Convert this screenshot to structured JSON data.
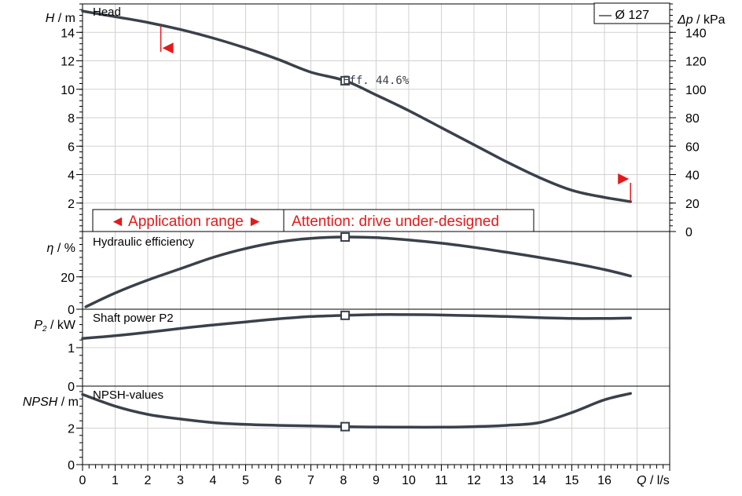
{
  "chart_data": {
    "type": "line",
    "colors": {
      "curve": "#3a414b",
      "annotation": "#e41a1a",
      "frame": "#000000"
    },
    "legend": {
      "label": "— Ø 127",
      "placement": "top-right"
    },
    "x_axis": {
      "label_name": "Q",
      "label_unit": " / l/s",
      "range": [
        0,
        18
      ],
      "ticks": [
        "0",
        "1",
        "2",
        "3",
        "4",
        "5",
        "6",
        "7",
        "8",
        "9",
        "10",
        "11",
        "12",
        "13",
        "14",
        "15",
        "16"
      ]
    },
    "operating_point": {
      "x": 8.05,
      "efficiency_label": "Eff. 44.6%"
    },
    "head": {
      "title": "Head",
      "ylabel_name": "H",
      "ylabel_unit": " / m",
      "ylim": [
        0,
        16
      ],
      "ticks": [
        "2",
        "4",
        "6",
        "8",
        "10",
        "12",
        "14"
      ],
      "right_label_name": "Δp",
      "right_label_unit": " / kPa",
      "right_lim": [
        0,
        160
      ],
      "right_ticks": [
        "0",
        "20",
        "40",
        "60",
        "80",
        "100",
        "120",
        "140"
      ],
      "points": [
        [
          0,
          15.5
        ],
        [
          1,
          15.1
        ],
        [
          2,
          14.7
        ],
        [
          3,
          14.2
        ],
        [
          4,
          13.6
        ],
        [
          5,
          12.9
        ],
        [
          6,
          12.1
        ],
        [
          7,
          11.2
        ],
        [
          8.05,
          10.6
        ],
        [
          9,
          9.6
        ],
        [
          10,
          8.5
        ],
        [
          11,
          7.3
        ],
        [
          12,
          6.1
        ],
        [
          13,
          4.9
        ],
        [
          14,
          3.8
        ],
        [
          15,
          2.9
        ],
        [
          16,
          2.4
        ],
        [
          16.8,
          2.1
        ]
      ]
    },
    "annotations": {
      "application_range": "◄ Application range ►",
      "attention": "Attention: drive under-designed",
      "range_start_x": 0.55,
      "range_end_x": 6.25,
      "left_limit_x": 2.4,
      "right_limit_x": 16.8
    },
    "efficiency": {
      "title": "Hydraulic efficiency",
      "ylabel_name": "η",
      "ylabel_unit": " / %",
      "ylim": [
        0,
        48
      ],
      "ticks": [
        "0",
        "20"
      ],
      "points": [
        [
          0.1,
          1.5
        ],
        [
          1,
          10
        ],
        [
          2,
          18
        ],
        [
          3,
          25
        ],
        [
          4,
          32
        ],
        [
          5,
          37.5
        ],
        [
          6,
          41.5
        ],
        [
          7,
          43.8
        ],
        [
          8.05,
          44.6
        ],
        [
          9,
          44.2
        ],
        [
          10,
          42.8
        ],
        [
          11,
          40.8
        ],
        [
          12,
          38.2
        ],
        [
          13,
          35.2
        ],
        [
          14,
          32
        ],
        [
          15,
          28.5
        ],
        [
          16,
          24.5
        ],
        [
          16.8,
          20.5
        ]
      ]
    },
    "power": {
      "title": "Shaft power P2",
      "ylabel_name": "P",
      "ylabel_sub": "2",
      "ylabel_unit": " / kW",
      "ylim": [
        0,
        2
      ],
      "ticks": [
        "0",
        "1"
      ],
      "points": [
        [
          0,
          1.24
        ],
        [
          1,
          1.31
        ],
        [
          2,
          1.4
        ],
        [
          3,
          1.5
        ],
        [
          4,
          1.59
        ],
        [
          5,
          1.67
        ],
        [
          6,
          1.75
        ],
        [
          7,
          1.81
        ],
        [
          8.05,
          1.84
        ],
        [
          9,
          1.86
        ],
        [
          10,
          1.86
        ],
        [
          11,
          1.85
        ],
        [
          12,
          1.83
        ],
        [
          13,
          1.81
        ],
        [
          14,
          1.78
        ],
        [
          15,
          1.76
        ],
        [
          16,
          1.76
        ],
        [
          16.8,
          1.77
        ]
      ]
    },
    "npsh": {
      "title": "NPSH-values",
      "ylabel_name": "NPSH",
      "ylabel_unit": " / m",
      "ylim": [
        0,
        4.3
      ],
      "ticks": [
        "0",
        "2"
      ],
      "points": [
        [
          0,
          3.85
        ],
        [
          1,
          3.2
        ],
        [
          2,
          2.75
        ],
        [
          3,
          2.5
        ],
        [
          4,
          2.3
        ],
        [
          5,
          2.2
        ],
        [
          6,
          2.15
        ],
        [
          7,
          2.12
        ],
        [
          8.05,
          2.08
        ],
        [
          9,
          2.06
        ],
        [
          10,
          2.05
        ],
        [
          11,
          2.05
        ],
        [
          12,
          2.08
        ],
        [
          13,
          2.15
        ],
        [
          14,
          2.3
        ],
        [
          15,
          2.85
        ],
        [
          16,
          3.55
        ],
        [
          16.8,
          3.9
        ]
      ]
    }
  }
}
